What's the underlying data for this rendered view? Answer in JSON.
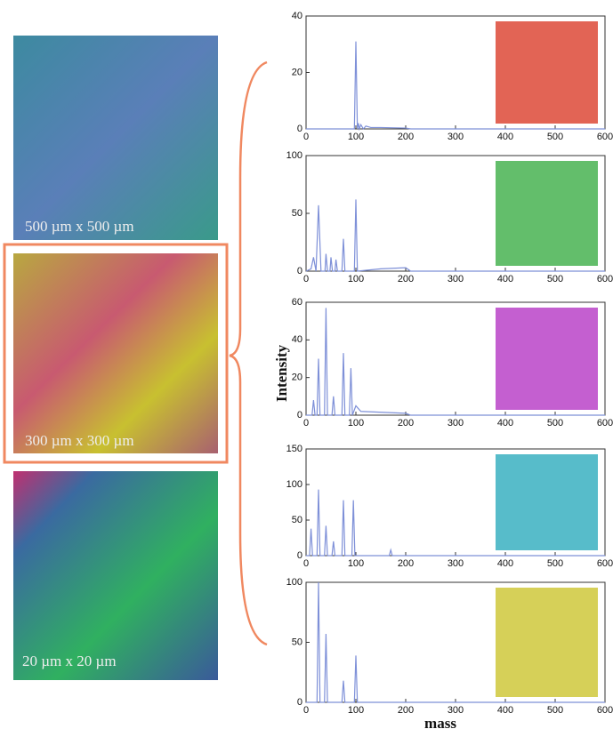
{
  "images": [
    {
      "caption": "500 µm  x 500 µm"
    },
    {
      "caption": "300 µm  x 300 µm"
    },
    {
      "caption": "20 µm  x 20 µm"
    }
  ],
  "chart_data": [
    {
      "type": "line",
      "xlim": [
        0,
        600
      ],
      "ylim": [
        0,
        40
      ],
      "xticks": [
        0,
        100,
        200,
        300,
        400,
        500,
        600
      ],
      "yticks": [
        0,
        20,
        40
      ],
      "inset_color": "#d8301c",
      "series": [
        {
          "color": "#7e90d8",
          "x": [
            0,
            97,
            100,
            103,
            105,
            107,
            110,
            115,
            120,
            130,
            150,
            200,
            210,
            600
          ],
          "values": [
            0,
            0,
            31,
            0,
            2,
            0,
            1.5,
            0,
            1,
            0.5,
            0.5,
            0.3,
            0,
            0
          ]
        }
      ]
    },
    {
      "type": "line",
      "xlim": [
        0,
        600
      ],
      "ylim": [
        0,
        100
      ],
      "xticks": [
        0,
        100,
        200,
        300,
        400,
        500,
        600
      ],
      "yticks": [
        0,
        50,
        100
      ],
      "inset_color": "#2fa83a",
      "series": [
        {
          "color": "#7e90d8",
          "x": [
            0,
            10,
            15,
            20,
            25,
            30,
            38,
            40,
            43,
            48,
            50,
            53,
            58,
            60,
            63,
            72,
            75,
            78,
            97,
            100,
            103,
            150,
            200,
            210,
            600
          ],
          "values": [
            0,
            2,
            12,
            0,
            57,
            0,
            0,
            15,
            0,
            0,
            12,
            0,
            0,
            10,
            0,
            0,
            28,
            0,
            0,
            62,
            0,
            2,
            3,
            0,
            0
          ]
        }
      ]
    },
    {
      "type": "line",
      "xlim": [
        0,
        600
      ],
      "ylim": [
        0,
        60
      ],
      "xticks": [
        0,
        100,
        200,
        300,
        400,
        500,
        600
      ],
      "yticks": [
        0,
        20,
        40,
        60
      ],
      "inset_color": "#b02ac0",
      "ylabel": "Intensity",
      "series": [
        {
          "color": "#7e90d8",
          "x": [
            0,
            12,
            15,
            18,
            22,
            25,
            28,
            37,
            40,
            43,
            52,
            55,
            58,
            72,
            75,
            78,
            87,
            90,
            93,
            100,
            110,
            200,
            210,
            600
          ],
          "values": [
            0,
            0,
            8,
            0,
            0,
            30,
            0,
            0,
            57,
            0,
            0,
            10,
            0,
            0,
            33,
            0,
            0,
            25,
            0,
            5,
            2,
            1,
            0,
            0
          ]
        }
      ]
    },
    {
      "type": "line",
      "xlim": [
        0,
        600
      ],
      "ylim": [
        0,
        150
      ],
      "xticks": [
        0,
        100,
        200,
        300,
        400,
        500,
        600
      ],
      "yticks": [
        0,
        50,
        100,
        150
      ],
      "inset_color": "#1fa6b8",
      "series": [
        {
          "color": "#7e90d8",
          "x": [
            0,
            7,
            10,
            13,
            22,
            25,
            28,
            37,
            40,
            43,
            52,
            55,
            58,
            72,
            75,
            78,
            92,
            95,
            98,
            167,
            170,
            173,
            600
          ],
          "values": [
            0,
            0,
            38,
            0,
            0,
            93,
            0,
            0,
            42,
            0,
            0,
            20,
            0,
            0,
            78,
            0,
            0,
            78,
            0,
            0,
            8,
            0,
            0
          ]
        }
      ]
    },
    {
      "type": "line",
      "xlim": [
        0,
        600
      ],
      "ylim": [
        0,
        100
      ],
      "xticks": [
        0,
        100,
        200,
        300,
        400,
        500,
        600
      ],
      "yticks": [
        0,
        50,
        100
      ],
      "inset_color": "#c8c020",
      "xlabel": "mass",
      "series": [
        {
          "color": "#7e90d8",
          "x": [
            0,
            22,
            25,
            28,
            37,
            40,
            43,
            72,
            75,
            78,
            97,
            100,
            103,
            600
          ],
          "values": [
            0,
            0,
            100,
            0,
            0,
            57,
            0,
            0,
            18,
            0,
            0,
            39,
            0,
            0
          ]
        }
      ]
    }
  ]
}
